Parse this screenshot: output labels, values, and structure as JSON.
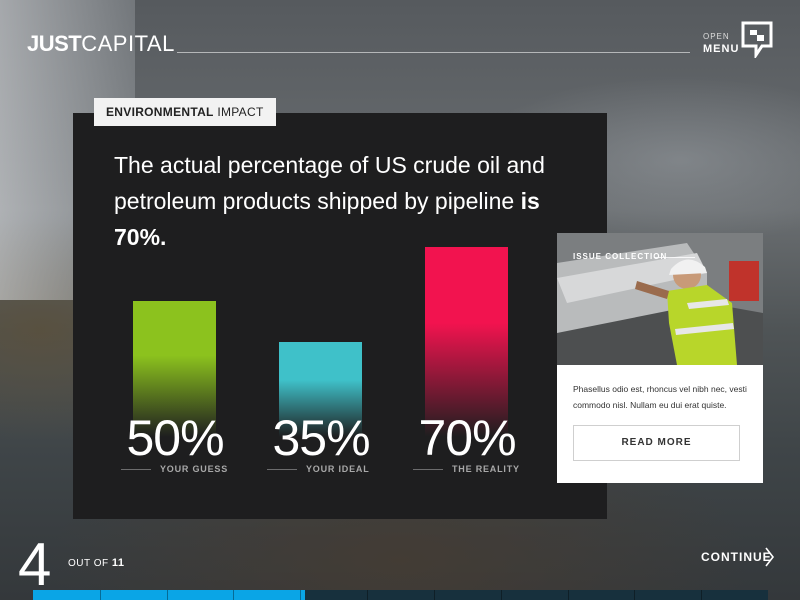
{
  "header": {
    "logo_bold": "JUST",
    "logo_light": "CAPITAL",
    "menu_open": "OPEN",
    "menu_label": "MENU"
  },
  "panel": {
    "tag_bold": "ENVIRONMENTAL",
    "tag_light": "IMPACT",
    "headline_text": "The actual percentage of US crude oil and petroleum products shipped by pipeline ",
    "headline_bold": "is 70%."
  },
  "chart_data": {
    "type": "bar",
    "categories": [
      "YOUR GUESS",
      "YOUR IDEAL",
      "THE REALITY"
    ],
    "values": [
      50,
      35,
      70
    ],
    "value_labels": [
      "50%",
      "35%",
      "70%"
    ],
    "colors": [
      "#8cc21e",
      "#3fc1c9",
      "#f2134f"
    ],
    "ylim": [
      0,
      100
    ]
  },
  "card": {
    "tag": "ISSUE COLLECTION",
    "text": "Phasellus odio est, rhoncus vel nibh nec, vesti commodo nisl. Nullam eu dui erat quiste.",
    "button_label": "READ MORE"
  },
  "footer": {
    "page_number": "4",
    "out_of_label": "OUT OF",
    "total": "11",
    "continue_label": "CONTINUE",
    "progress": 0.37,
    "progress_segments": 11
  }
}
